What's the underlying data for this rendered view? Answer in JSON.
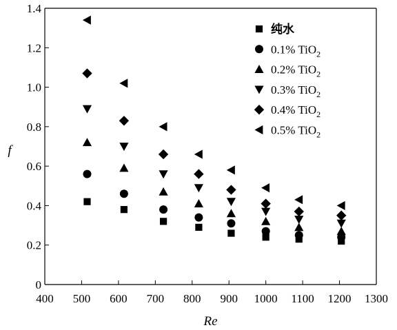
{
  "chart_data": {
    "type": "scatter",
    "xlabel": "Re",
    "ylabel": "f",
    "xlim": [
      400,
      1300
    ],
    "ylim": [
      0,
      1.4
    ],
    "xticks": [
      400,
      500,
      600,
      700,
      800,
      900,
      1000,
      1100,
      1200,
      1300
    ],
    "yticks": [
      0,
      0.2,
      0.4,
      0.6,
      0.8,
      1.0,
      1.2,
      1.4
    ],
    "ytick_labels": [
      "0",
      "0.2",
      "0.4",
      "0.6",
      "0.8",
      "1.0",
      "1.2",
      "1.4"
    ],
    "legend_placement": "top-right",
    "grid": false,
    "x": [
      515,
      615,
      722,
      818,
      906,
      1000,
      1090,
      1205
    ],
    "series": [
      {
        "name": "纯水",
        "marker": "square",
        "values": [
          0.42,
          0.38,
          0.32,
          0.29,
          0.26,
          0.24,
          0.23,
          0.22
        ]
      },
      {
        "name": "0.1% TiO",
        "name_sub": "2",
        "marker": "circle",
        "values": [
          0.56,
          0.46,
          0.38,
          0.34,
          0.31,
          0.27,
          0.25,
          0.24
        ]
      },
      {
        "name": "0.2% TiO",
        "name_sub": "2",
        "marker": "triangle-up",
        "values": [
          0.72,
          0.59,
          0.47,
          0.41,
          0.36,
          0.32,
          0.29,
          0.27
        ]
      },
      {
        "name": "0.3% TiO",
        "name_sub": "2",
        "marker": "triangle-down",
        "values": [
          0.89,
          0.7,
          0.56,
          0.49,
          0.42,
          0.37,
          0.33,
          0.31
        ]
      },
      {
        "name": "0.4% TiO",
        "name_sub": "2",
        "marker": "diamond",
        "values": [
          1.07,
          0.83,
          0.66,
          0.56,
          0.48,
          0.41,
          0.37,
          0.35
        ]
      },
      {
        "name": "0.5% TiO",
        "name_sub": "2",
        "marker": "triangle-left",
        "values": [
          1.34,
          1.02,
          0.8,
          0.66,
          0.58,
          0.49,
          0.43,
          0.4
        ]
      }
    ]
  }
}
